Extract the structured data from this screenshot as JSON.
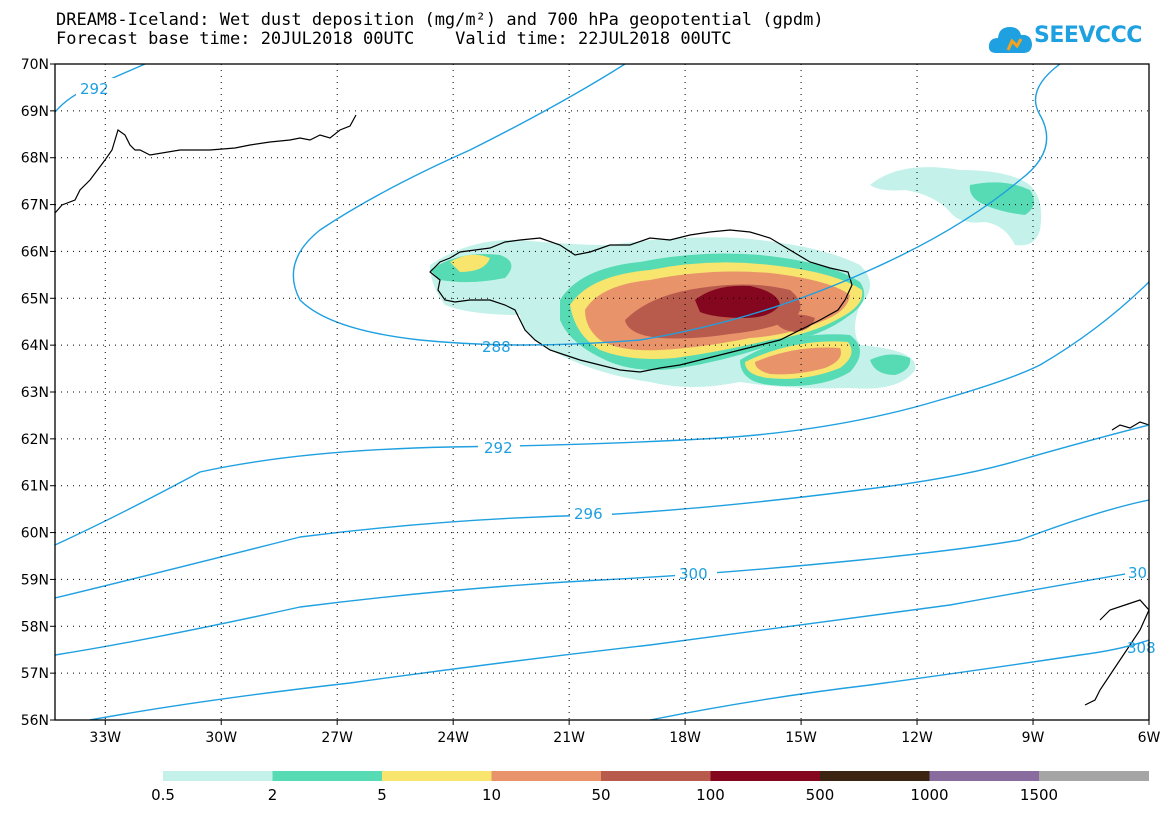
{
  "title": {
    "line1": "DREAM8-Iceland: Wet dust deposition (mg/m²) and 700 hPa geopotential (gpdm)",
    "line2": "Forecast base time: 20JUL2018 00UTC    Valid time: 22JUL2018 00UTC"
  },
  "logo": {
    "text": "SEEVCCC",
    "color": "#1fa0e0"
  },
  "axes": {
    "lat_labels": [
      "56N",
      "57N",
      "58N",
      "59N",
      "60N",
      "61N",
      "62N",
      "63N",
      "64N",
      "65N",
      "66N",
      "67N",
      "68N",
      "69N",
      "70N"
    ],
    "lon_labels": [
      "33W",
      "30W",
      "27W",
      "24W",
      "21W",
      "18W",
      "15W",
      "12W",
      "9W",
      "6W"
    ],
    "lat_range": [
      56,
      70
    ],
    "lon_range": [
      -34.3,
      -6
    ],
    "grid": true
  },
  "colorbar": {
    "labels": [
      "0.5",
      "2",
      "5",
      "10",
      "50",
      "100",
      "500",
      "1000",
      "1500"
    ],
    "colors": [
      "#c4f2ea",
      "#57dbb5",
      "#f7e56e",
      "#e9936b",
      "#b85a4c",
      "#84061f",
      "#3c2412",
      "#8a6b9e",
      "#a5a5a5"
    ]
  },
  "contours": {
    "color": "#1fa0e0",
    "labels": [
      "292",
      "288",
      "292",
      "296",
      "300",
      "30",
      "308"
    ]
  }
}
